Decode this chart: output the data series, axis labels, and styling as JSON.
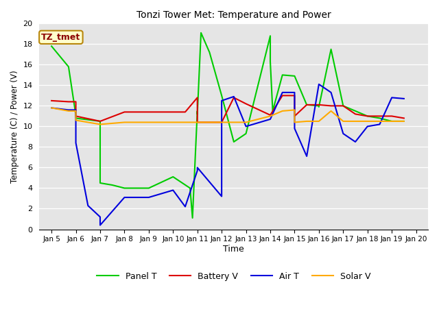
{
  "title": "Tonzi Tower Met: Temperature and Power",
  "xlabel": "Time",
  "ylabel": "Temperature (C) / Power (V)",
  "annotation": "TZ_tmet",
  "ylim": [
    0,
    20
  ],
  "x_tick_labels": [
    "Jan 5",
    "Jan 6",
    "Jan 7",
    "Jan 8",
    "Jan 9",
    "Jan 10",
    "Jan 11",
    "Jan 12",
    "Jan 13",
    "Jan 14",
    "Jan 15",
    "Jan 16",
    "Jan 17",
    "Jan 18",
    "Jan 19",
    "Jan 20"
  ],
  "plot_bg": "#e5e5e5",
  "fig_bg": "#ffffff",
  "panel_t_color": "#00cc00",
  "panel_t_label": "Panel T",
  "panel_t_x": [
    0,
    0.7,
    1.0,
    1.0,
    2.0,
    2.0,
    2.5,
    3.0,
    4.0,
    5.0,
    5.7,
    5.8,
    6.0,
    6.0,
    6.15,
    6.5,
    7.0,
    7.5,
    8.0,
    9.0,
    9.0,
    9.1,
    9.5,
    10.0,
    10.5,
    11.0,
    11.0,
    11.5,
    12.0,
    12.5,
    13.0,
    13.5,
    14.0,
    14.5
  ],
  "panel_t_y": [
    17.8,
    15.8,
    11.1,
    10.8,
    10.5,
    4.5,
    4.3,
    4.0,
    4.0,
    5.1,
    4.0,
    1.1,
    11.5,
    11.2,
    19.1,
    17.2,
    13.0,
    8.5,
    9.3,
    18.8,
    16.3,
    11.5,
    15.0,
    14.9,
    12.1,
    12.0,
    11.9,
    17.5,
    12.0,
    11.5,
    11.0,
    10.8,
    10.5,
    10.5
  ],
  "battery_v_color": "#dd0000",
  "battery_v_label": "Battery V",
  "battery_v_x": [
    0,
    0.7,
    1.0,
    1.0,
    2.0,
    3.0,
    4.0,
    5.0,
    5.5,
    6.0,
    6.0,
    7.0,
    7.5,
    8.0,
    9.0,
    9.5,
    10.0,
    10.0,
    10.5,
    11.0,
    11.5,
    12.0,
    12.5,
    13.0,
    13.5,
    14.0,
    14.5
  ],
  "battery_v_y": [
    12.5,
    12.4,
    12.4,
    11.0,
    10.5,
    11.4,
    11.4,
    11.4,
    11.4,
    12.8,
    10.4,
    10.4,
    12.8,
    12.2,
    11.1,
    13.0,
    13.0,
    11.0,
    12.1,
    12.1,
    12.0,
    12.0,
    11.2,
    11.0,
    11.0,
    11.0,
    10.8
  ],
  "air_t_color": "#0000dd",
  "air_t_label": "Air T",
  "air_t_x": [
    0,
    0.7,
    1.0,
    1.0,
    1.5,
    2.0,
    2.0,
    3.0,
    4.0,
    5.0,
    5.5,
    6.0,
    6.0,
    7.0,
    7.0,
    7.5,
    8.0,
    9.0,
    9.5,
    10.0,
    10.0,
    10.5,
    11.0,
    11.5,
    12.0,
    12.5,
    13.0,
    13.5,
    14.0,
    14.5
  ],
  "air_t_y": [
    11.8,
    11.6,
    11.6,
    8.4,
    2.3,
    1.2,
    0.4,
    3.1,
    3.1,
    3.8,
    2.2,
    5.7,
    6.0,
    3.2,
    12.5,
    12.9,
    10.0,
    10.7,
    13.3,
    13.3,
    9.8,
    7.1,
    14.1,
    13.3,
    9.3,
    8.5,
    10.0,
    10.2,
    12.8,
    12.7
  ],
  "solar_v_color": "#ffaa00",
  "solar_v_label": "Solar V",
  "solar_v_x": [
    0,
    0.7,
    1.0,
    1.0,
    2.0,
    3.0,
    4.0,
    5.0,
    6.0,
    7.0,
    8.0,
    9.0,
    9.5,
    10.0,
    10.0,
    10.5,
    11.0,
    11.5,
    12.0,
    12.5,
    13.0,
    13.5,
    14.0,
    14.5
  ],
  "solar_v_y": [
    11.8,
    11.5,
    11.5,
    10.6,
    10.2,
    10.4,
    10.4,
    10.4,
    10.4,
    10.4,
    10.4,
    11.0,
    11.5,
    11.6,
    10.4,
    10.5,
    10.5,
    11.5,
    10.5,
    10.5,
    10.5,
    10.5,
    10.5,
    10.5
  ]
}
